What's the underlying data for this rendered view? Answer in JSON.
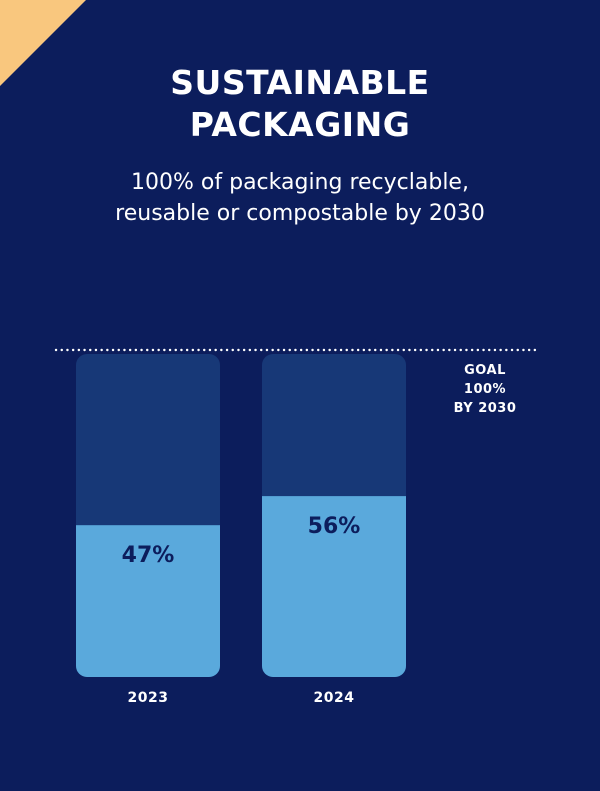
{
  "colors": {
    "background": "#0c1d5c",
    "corner_accent": "#f9c77e",
    "bar_track": "#173877",
    "bar_fill": "#5aa9dc",
    "value_text": "#0c1d5c",
    "text": "#ffffff"
  },
  "header": {
    "title_line1": "SUSTAINABLE",
    "title_line2": "PACKAGING",
    "subtitle_line1": "100% of packaging recyclable,",
    "subtitle_line2": "reusable or compostable by 2030"
  },
  "goal": {
    "line1": "GOAL",
    "line2": "100%",
    "line3": "BY 2030"
  },
  "chart_data": {
    "type": "bar",
    "title": "SUSTAINABLE PACKAGING",
    "subtitle": "100% of packaging recyclable, reusable or compostable by 2030",
    "categories": [
      "2023",
      "2024"
    ],
    "values": [
      47,
      56
    ],
    "value_labels": [
      "47%",
      "56%"
    ],
    "unit": "%",
    "ylim": [
      0,
      100
    ],
    "goal": 100,
    "goal_label": "GOAL 100% BY 2030",
    "grid": false,
    "legend": "none"
  }
}
